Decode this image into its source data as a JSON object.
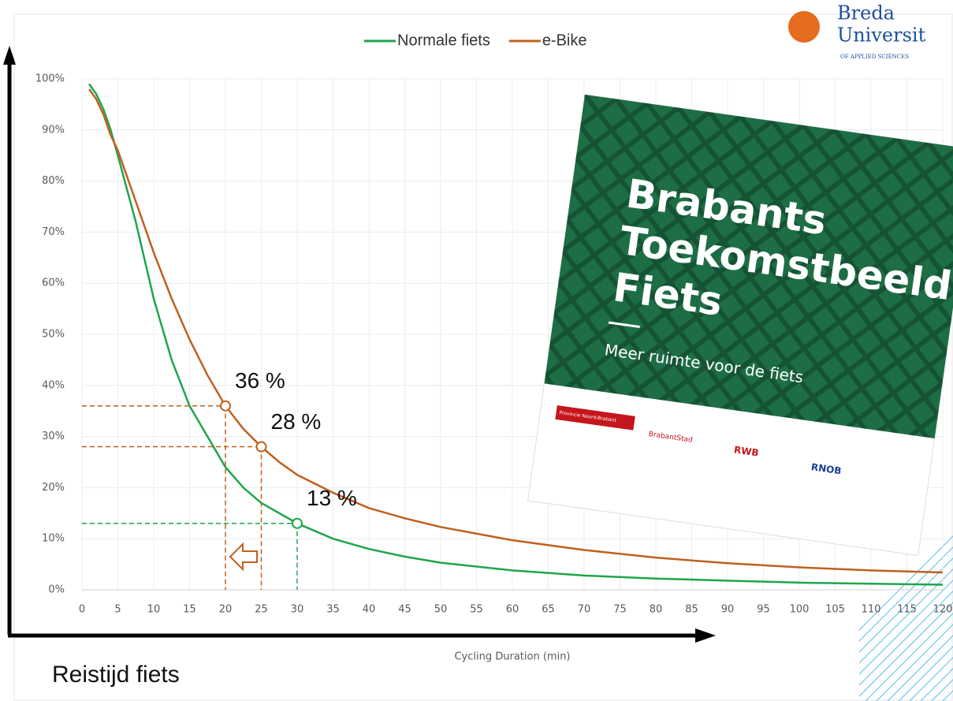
{
  "chart_data": {
    "type": "line",
    "x_label": "Cycling Duration (min)",
    "y_label": "Reistijd fiets",
    "x": [
      1,
      2,
      3,
      4,
      5,
      7.5,
      10,
      12.5,
      15,
      17.5,
      20,
      22.5,
      25,
      27.5,
      30,
      35,
      40,
      45,
      50,
      60,
      70,
      80,
      90,
      100,
      110,
      120
    ],
    "series": [
      {
        "name": "Normale fiets",
        "color": "#1ea64b",
        "values": [
          99,
          97,
          94,
          90,
          85,
          72,
          57,
          45,
          36,
          30,
          24,
          20,
          17,
          15,
          13,
          10,
          8,
          6.5,
          5.3,
          3.8,
          2.8,
          2.2,
          1.8,
          1.4,
          1.2,
          1.0
        ]
      },
      {
        "name": "e-Bike",
        "color": "#c0601f",
        "values": [
          98,
          96,
          93,
          89,
          86,
          76,
          66,
          57,
          49,
          42,
          36,
          31.5,
          28,
          25,
          22.5,
          19,
          16,
          14,
          12.3,
          9.7,
          7.8,
          6.3,
          5.2,
          4.4,
          3.8,
          3.4
        ]
      }
    ],
    "markers": [
      {
        "series": 1,
        "x": 20,
        "y": 36,
        "label": "36 %"
      },
      {
        "series": 1,
        "x": 25,
        "y": 28,
        "label": "28 %"
      },
      {
        "series": 0,
        "x": 30,
        "y": 13,
        "label": "13 %"
      }
    ],
    "xlim": [
      0,
      120
    ],
    "xticks": [
      0,
      5,
      10,
      15,
      20,
      25,
      30,
      35,
      40,
      45,
      50,
      55,
      60,
      65,
      70,
      75,
      80,
      85,
      90,
      95,
      100,
      105,
      110,
      115,
      120
    ],
    "ylim": [
      0,
      100
    ],
    "yticks": [
      {
        "value": 0,
        "label": "0%"
      },
      {
        "value": 10,
        "label": "10%"
      },
      {
        "value": 20,
        "label": "20%"
      },
      {
        "value": 30,
        "label": "30%"
      },
      {
        "value": 40,
        "label": "40%"
      },
      {
        "value": 50,
        "label": "50%"
      },
      {
        "value": 60,
        "label": "60%"
      },
      {
        "value": 70,
        "label": "70%"
      },
      {
        "value": 80,
        "label": "80%"
      },
      {
        "value": 90,
        "label": "90%"
      },
      {
        "value": {
          "value": 100,
          "label": "100%"
        }
      }
    ],
    "grid": true,
    "legend": "top"
  },
  "logo": {
    "line1": "Breda",
    "line2": "Universit",
    "line3": "OF APPLIED SCIENCES"
  },
  "brochure": {
    "title1": "Brabants",
    "title2": "Toekomstbeeld",
    "title3": "Fiets",
    "subtitle": "Meer ruimte voor de fiets",
    "partners": [
      "Provincie Noord-Brabant",
      "BrabantStad",
      "RWB",
      "RNOB"
    ]
  }
}
